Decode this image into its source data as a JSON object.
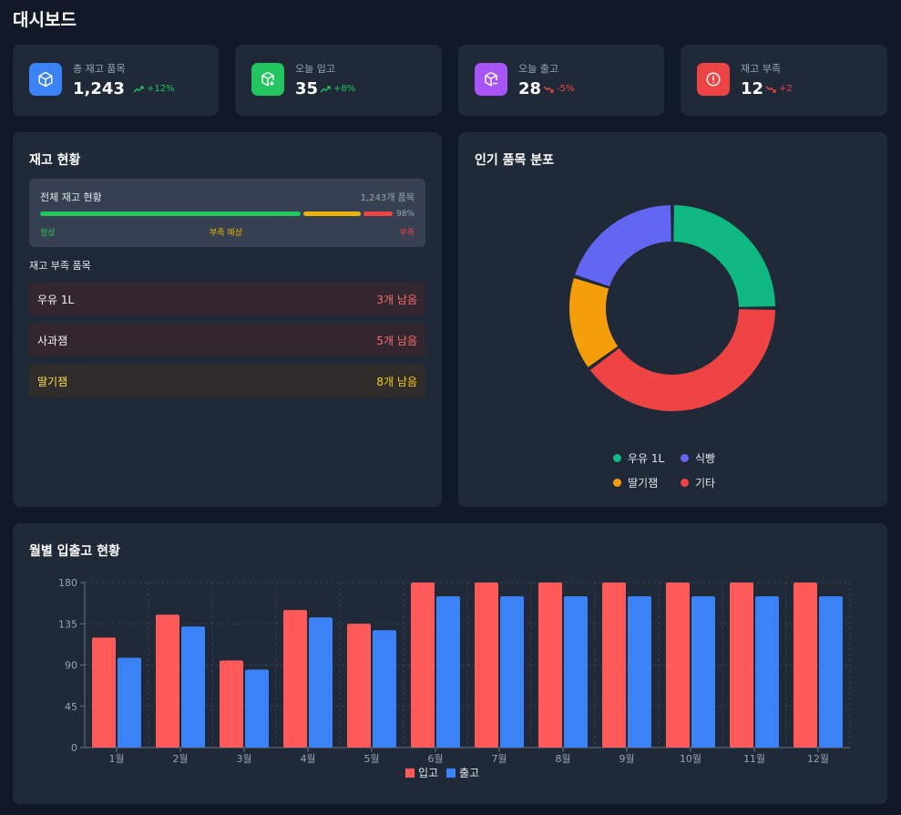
{
  "header": {
    "title": "대시보드"
  },
  "stats": [
    {
      "label": "총 재고 품목",
      "value": "1,243",
      "trend": "+12%",
      "direction": "up",
      "icon": "box-icon",
      "color": "#3b82f6"
    },
    {
      "label": "오늘 입고",
      "value": "35",
      "trend": "+8%",
      "direction": "up",
      "icon": "package-plus-icon",
      "color": "#22c55e"
    },
    {
      "label": "오늘 출고",
      "value": "28",
      "trend": "-5%",
      "direction": "down",
      "icon": "package-minus-icon",
      "color": "#a855f7"
    },
    {
      "label": "재고 부족",
      "value": "12",
      "trend": "+2",
      "direction": "down",
      "icon": "alert-circle-icon",
      "color": "#ef4444"
    }
  ],
  "inventory": {
    "title": "재고 현황",
    "overview_label": "전체 재고 현황",
    "overview_count": "1,243개 품목",
    "percent_label": "98%",
    "legend": {
      "normal": "정상",
      "warning": "부족 예상",
      "shortage": "부족"
    },
    "low_stock_title": "재고 부족 품목",
    "low_stock_items": [
      {
        "name": "우유 1L",
        "remaining": "3개 남음",
        "level": "critical"
      },
      {
        "name": "사과잼",
        "remaining": "5개 남음",
        "level": "critical"
      },
      {
        "name": "딸기잼",
        "remaining": "8개 남음",
        "level": "warning"
      }
    ]
  },
  "popular": {
    "title": "인기 품목 분포",
    "legend": [
      "우유 1L",
      "식빵",
      "딸기잼",
      "기타"
    ]
  },
  "monthly": {
    "title": "월별 입출고 현황"
  },
  "colors": {
    "milk": "#10b981",
    "bread": "#6366f1",
    "jam": "#f59e0b",
    "etc": "#ef4444",
    "inbound": "#ff5a5a",
    "outbound": "#3b82f6"
  },
  "chart_data": [
    {
      "type": "pie",
      "title": "인기 품목 분포",
      "categories": [
        "우유 1L",
        "식빵",
        "딸기잼",
        "기타"
      ],
      "values": [
        25,
        20,
        15,
        40
      ],
      "donut": true,
      "legend_position": "bottom"
    },
    {
      "type": "bar",
      "title": "월별 입출고 현황",
      "categories": [
        "1월",
        "2월",
        "3월",
        "4월",
        "5월",
        "6월",
        "7월",
        "8월",
        "9월",
        "10월",
        "11월",
        "12월"
      ],
      "series": [
        {
          "name": "입고",
          "values": [
            120,
            145,
            95,
            150,
            135,
            180,
            180,
            180,
            180,
            180,
            180,
            180
          ]
        },
        {
          "name": "출고",
          "values": [
            98,
            132,
            85,
            142,
            128,
            165,
            165,
            165,
            165,
            165,
            165,
            165
          ]
        }
      ],
      "yticks": [
        0,
        45,
        90,
        135,
        180
      ],
      "ylim": [
        0,
        180
      ],
      "grid": true,
      "legend_position": "bottom"
    }
  ]
}
